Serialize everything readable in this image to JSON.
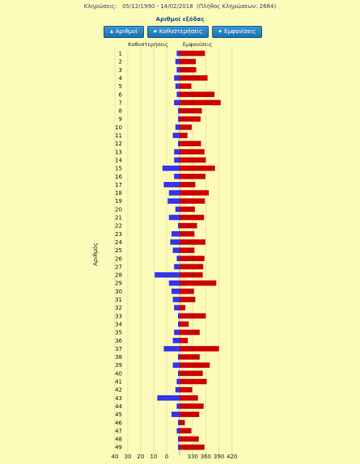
{
  "header": {
    "draws_label": "Κληρώσεις:",
    "date_range": "05/12/1990 - 14/02/2018",
    "draw_count": "(Πλήθος Κληρώσεων: 2684)"
  },
  "controls": {
    "title": "Αριθμοί εξόδας",
    "buttons": [
      {
        "label": "Αριθμοί",
        "icon": "triangle-up-icon"
      },
      {
        "label": "Καθυστερήσεις",
        "icon": "diamond-icon"
      },
      {
        "label": "Εμφανίσεις",
        "icon": "diamond-icon"
      }
    ]
  },
  "chart_data": {
    "type": "bar",
    "orientation": "horizontal-butterfly",
    "ylabel": "Αριθμός",
    "left_label": "Καθυστερήσεις",
    "right_label": "Εμφανίσεις",
    "left_ticks": [
      "40",
      "30",
      "20",
      "10",
      "0"
    ],
    "right_ticks": [
      "330",
      "360",
      "390",
      "420"
    ],
    "colors": {
      "delays": "#3333ee",
      "appearances": "#cc0000"
    },
    "categories": [
      "1",
      "2",
      "3",
      "4",
      "5",
      "6",
      "7",
      "8",
      "9",
      "10",
      "11",
      "12",
      "13",
      "14",
      "15",
      "16",
      "17",
      "18",
      "19",
      "20",
      "21",
      "22",
      "23",
      "24",
      "25",
      "26",
      "27",
      "28",
      "29",
      "30",
      "31",
      "32",
      "33",
      "34",
      "35",
      "36",
      "37",
      "38",
      "39",
      "40",
      "41",
      "42",
      "43",
      "44",
      "45",
      "46",
      "47",
      "48",
      "49"
    ],
    "series": [
      {
        "name": "Καθυστερήσεις",
        "values": [
          1,
          2,
          1,
          3,
          2,
          1,
          3,
          0,
          0,
          2,
          4,
          0,
          3,
          3,
          12,
          3,
          11,
          7,
          8,
          2,
          7,
          0,
          5,
          6,
          4,
          1,
          3,
          18,
          7,
          5,
          4,
          3,
          0,
          0,
          3,
          4,
          11,
          0,
          4,
          0,
          1,
          2,
          16,
          1,
          5,
          0,
          1,
          0,
          0
        ]
      },
      {
        "name": "Εμφανίσεις",
        "values": [
          358,
          337,
          338,
          364,
          327,
          380,
          394,
          351,
          348,
          328,
          318,
          349,
          357,
          360,
          381,
          359,
          336,
          367,
          358,
          335,
          356,
          340,
          334,
          359,
          334,
          357,
          354,
          353,
          384,
          333,
          336,
          313,
          360,
          321,
          346,
          319,
          390,
          346,
          369,
          353,
          362,
          329,
          342,
          355,
          345,
          312,
          327,
          344,
          357
        ]
      }
    ]
  }
}
